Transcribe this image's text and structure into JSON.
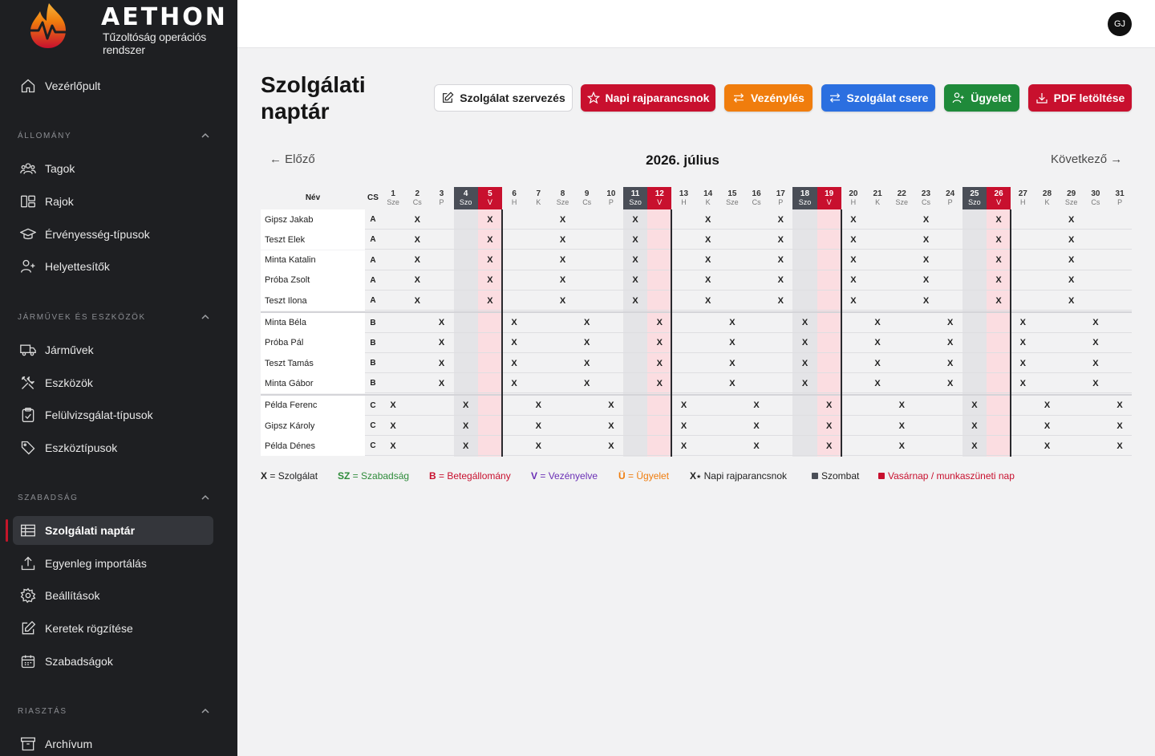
{
  "brand": {
    "name": "AETHON",
    "subtitle": "Tűzoltóság operációs rendszer"
  },
  "user": {
    "initials": "GJ"
  },
  "sidebar": {
    "top_item": {
      "label": "Vezérlőpult",
      "icon": "home-icon"
    },
    "sections": [
      {
        "title": "ÁLLOMÁNY",
        "items": [
          {
            "label": "Tagok",
            "icon": "users-icon"
          },
          {
            "label": "Rajok",
            "icon": "layout-icon"
          },
          {
            "label": "Érvényesség-típusok",
            "icon": "graduation-icon"
          },
          {
            "label": "Helyettesítők",
            "icon": "user-plus-icon"
          }
        ]
      },
      {
        "title": "JÁRMŰVEK ÉS ESZKÖZÖK",
        "items": [
          {
            "label": "Járművek",
            "icon": "truck-icon"
          },
          {
            "label": "Eszközök",
            "icon": "tools-icon"
          },
          {
            "label": "Felülvizsgálat-típusok",
            "icon": "clipboard-check-icon"
          },
          {
            "label": "Eszköztípusok",
            "icon": "tag-icon"
          }
        ]
      },
      {
        "title": "SZABADSÁG",
        "items": [
          {
            "label": "Szolgálati naptár",
            "icon": "table-icon",
            "active": true
          },
          {
            "label": "Egyenleg importálás",
            "icon": "upload-icon"
          },
          {
            "label": "Beállítások",
            "icon": "gear-icon"
          },
          {
            "label": "Keretek rögzítése",
            "icon": "edit-icon"
          },
          {
            "label": "Szabadságok",
            "icon": "calendar-icon"
          }
        ]
      },
      {
        "title": "RIASZTÁS",
        "items": [
          {
            "label": "Archívum",
            "icon": "archive-icon"
          }
        ]
      }
    ]
  },
  "page": {
    "title": "Szolgálati naptár",
    "buttons": [
      {
        "label": "Szolgálat szervezés",
        "style": "outline",
        "icon": "edit-icon"
      },
      {
        "label": "Napi rajparancsnok",
        "style": "red",
        "icon": "star-icon"
      },
      {
        "label": "Vezénylés",
        "style": "orange",
        "icon": "swap-icon"
      },
      {
        "label": "Szolgálat csere",
        "style": "blue",
        "icon": "swap-icon"
      },
      {
        "label": "Ügyelet",
        "style": "green",
        "icon": "user-plus-icon"
      },
      {
        "label": "PDF letöltése",
        "style": "red",
        "icon": "download-icon"
      }
    ],
    "prev_label": "← Előző",
    "next_label": "Következő →",
    "month_title": "2026. július"
  },
  "calendar": {
    "header_name": "Név",
    "header_cs": "CS",
    "days": [
      {
        "d": "1",
        "w": "Sze"
      },
      {
        "d": "2",
        "w": "Cs"
      },
      {
        "d": "3",
        "w": "P"
      },
      {
        "d": "4",
        "w": "Szo"
      },
      {
        "d": "5",
        "w": "V"
      },
      {
        "d": "6",
        "w": "H"
      },
      {
        "d": "7",
        "w": "K"
      },
      {
        "d": "8",
        "w": "Sze"
      },
      {
        "d": "9",
        "w": "Cs"
      },
      {
        "d": "10",
        "w": "P"
      },
      {
        "d": "11",
        "w": "Szo"
      },
      {
        "d": "12",
        "w": "V"
      },
      {
        "d": "13",
        "w": "H"
      },
      {
        "d": "14",
        "w": "K"
      },
      {
        "d": "15",
        "w": "Sze"
      },
      {
        "d": "16",
        "w": "Cs"
      },
      {
        "d": "17",
        "w": "P"
      },
      {
        "d": "18",
        "w": "Szo"
      },
      {
        "d": "19",
        "w": "V"
      },
      {
        "d": "20",
        "w": "H"
      },
      {
        "d": "21",
        "w": "K"
      },
      {
        "d": "22",
        "w": "Sze"
      },
      {
        "d": "23",
        "w": "Cs"
      },
      {
        "d": "24",
        "w": "P"
      },
      {
        "d": "25",
        "w": "Szo"
      },
      {
        "d": "26",
        "w": "V"
      },
      {
        "d": "27",
        "w": "H"
      },
      {
        "d": "28",
        "w": "K"
      },
      {
        "d": "29",
        "w": "Sze"
      },
      {
        "d": "30",
        "w": "Cs"
      },
      {
        "d": "31",
        "w": "P"
      }
    ],
    "duty_mark": "X",
    "groups": [
      {
        "shift": "A",
        "duty_days": [
          2,
          5,
          8,
          11,
          14,
          17,
          20,
          23,
          26,
          29
        ],
        "members": [
          "Gipsz Jakab",
          "Teszt Elek",
          "Minta Katalin",
          "Próba Zsolt",
          "Teszt Ilona"
        ]
      },
      {
        "shift": "B",
        "duty_days": [
          3,
          6,
          9,
          12,
          15,
          18,
          21,
          24,
          27,
          30
        ],
        "members": [
          "Minta Béla",
          "Próba Pál",
          "Teszt Tamás",
          "Minta Gábor"
        ]
      },
      {
        "shift": "C",
        "duty_days": [
          1,
          4,
          7,
          10,
          13,
          16,
          19,
          22,
          25,
          28,
          31
        ],
        "members": [
          "Példa Ferenc",
          "Gipsz Károly",
          "Példa Dénes"
        ]
      }
    ]
  },
  "legend": [
    {
      "key": "X",
      "text": " = Szolgálat",
      "color": "#222222"
    },
    {
      "key": "SZ",
      "text": " = Szabadság",
      "color": "#2e8b3a"
    },
    {
      "key": "B",
      "text": " = Betegállomány",
      "color": "#c8102e"
    },
    {
      "key": "V",
      "text": " = Vezényelve",
      "color": "#6a2fb5"
    },
    {
      "key": "Ü",
      "text": " = Ügyelet",
      "color": "#f07d0d"
    },
    {
      "key": "X",
      "text": " Napi rajparancsnok",
      "color": "#222222",
      "marker": "star"
    },
    {
      "key": "",
      "text": "Szombat",
      "color": "#4a4e57",
      "square": true
    },
    {
      "key": "",
      "text": "Vasárnap / munkaszüneti nap",
      "color": "#c8102e",
      "square": true
    }
  ],
  "colors": {
    "sidebar_bg": "#1e1f22",
    "saturday_header": "#4a4e57",
    "sunday_header": "#c8102e",
    "saturday_col": "#e4e4e7",
    "sunday_col": "#fbdde1"
  }
}
